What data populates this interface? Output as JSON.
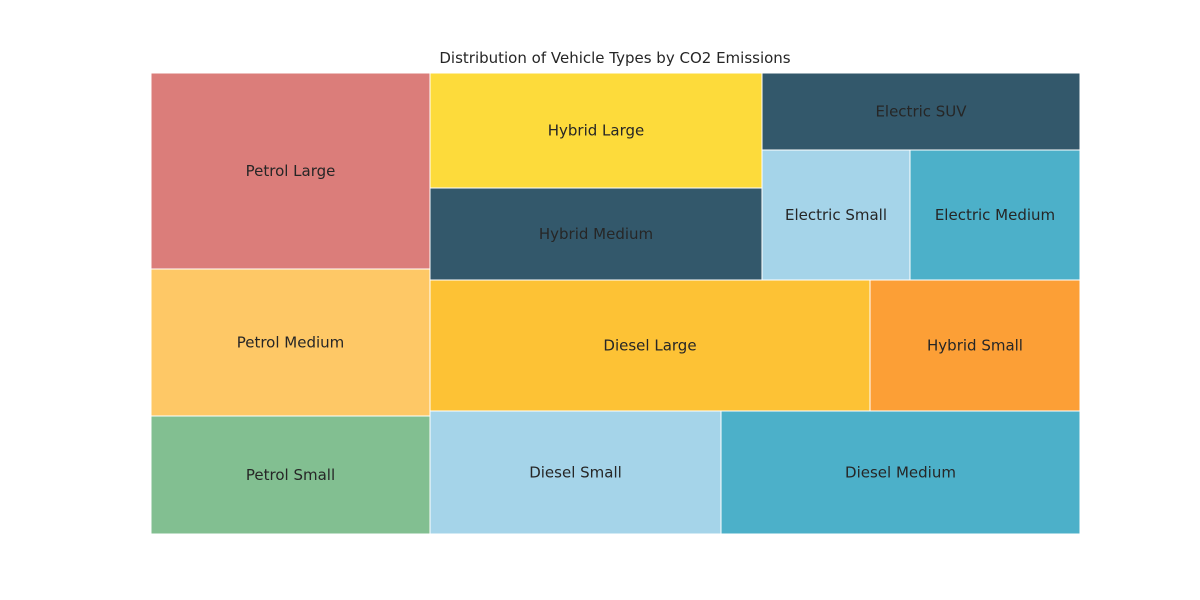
{
  "chart_data": {
    "type": "treemap",
    "title": "Distribution of Vehicle Types by CO2 Emissions",
    "items": [
      {
        "label": "Petrol Large",
        "value": 55,
        "color": "#db7d7a"
      },
      {
        "label": "Petrol Medium",
        "value": 41,
        "color": "#fec866"
      },
      {
        "label": "Petrol Small",
        "value": 33,
        "color": "#82bf91"
      },
      {
        "label": "Hybrid Large",
        "value": 38,
        "color": "#fddb3b"
      },
      {
        "label": "Hybrid Medium",
        "value": 30,
        "color": "#33586b"
      },
      {
        "label": "Electric SUV",
        "value": 25,
        "color": "#33586b"
      },
      {
        "label": "Electric Small",
        "value": 19,
        "color": "#a5d4e9"
      },
      {
        "label": "Electric Medium",
        "value": 22,
        "color": "#4cb0c9"
      },
      {
        "label": "Diesel Large",
        "value": 57,
        "color": "#fdc235"
      },
      {
        "label": "Hybrid Small",
        "value": 27,
        "color": "#fc9f36"
      },
      {
        "label": "Diesel Small",
        "value": 36,
        "color": "#a5d4e9"
      },
      {
        "label": "Diesel Medium",
        "value": 44,
        "color": "#4cb0c9"
      }
    ]
  }
}
